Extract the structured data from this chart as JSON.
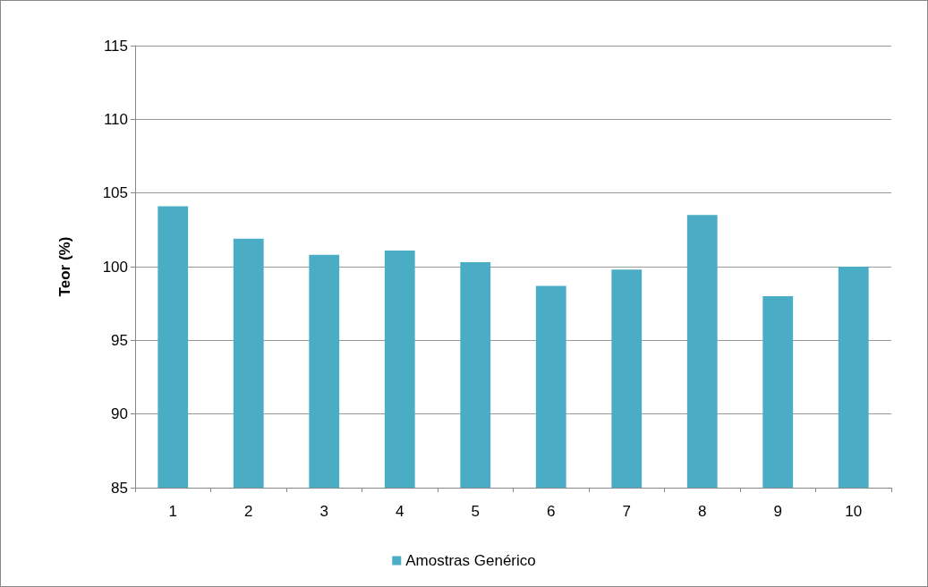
{
  "chart_data": {
    "type": "bar",
    "ylabel": "Teor (%)",
    "categories": [
      "1",
      "2",
      "3",
      "4",
      "5",
      "6",
      "7",
      "8",
      "9",
      "10"
    ],
    "series": [
      {
        "name": "Amostras Genérico",
        "color": "#4bacc6",
        "values": [
          104.1,
          101.9,
          100.8,
          101.1,
          100.3,
          98.7,
          99.8,
          103.5,
          98.0,
          100.0
        ]
      }
    ],
    "ylim": [
      85,
      115
    ],
    "yticks": [
      85,
      90,
      95,
      100,
      105,
      110,
      115
    ],
    "grid": "y",
    "legend": "bottom"
  }
}
